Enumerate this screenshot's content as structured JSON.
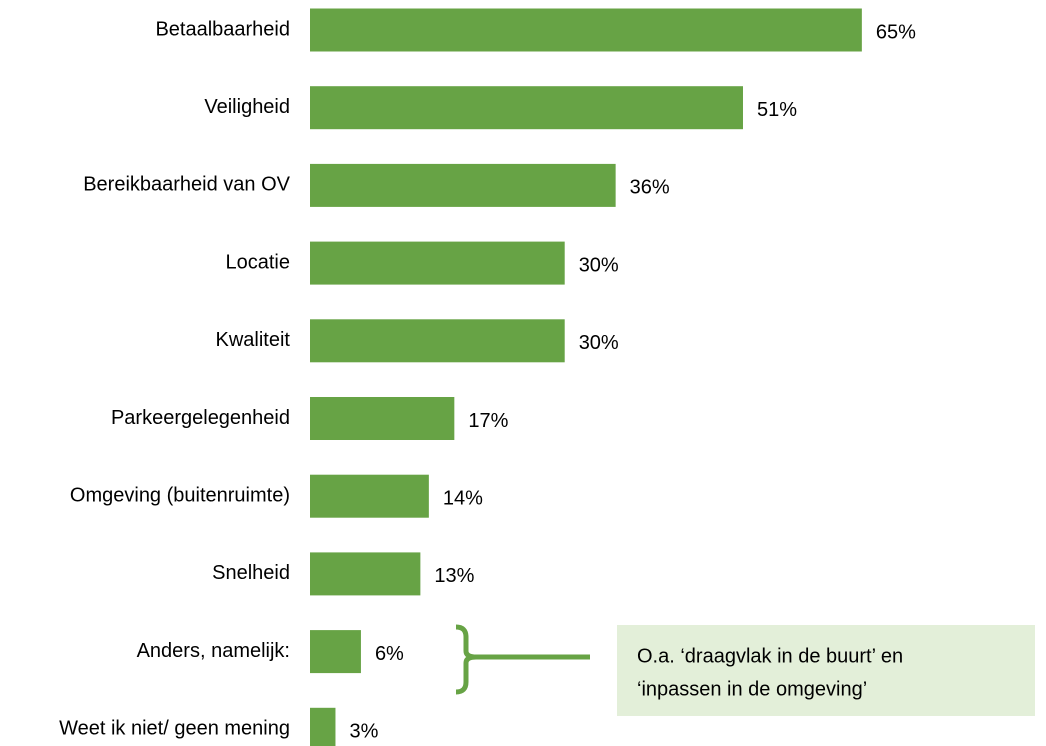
{
  "chart_data": {
    "type": "barh",
    "categories": [
      "Betaalbaarheid",
      "Veiligheid",
      "Bereikbaarheid van OV",
      "Locatie",
      "Kwaliteit",
      "Parkeergelegenheid",
      "Omgeving (buitenruimte)",
      "Snelheid",
      "Anders, namelijk:",
      "Weet ik niet/ geen mening"
    ],
    "values": [
      65,
      51,
      36,
      30,
      30,
      17,
      14,
      13,
      6,
      3
    ],
    "value_labels": [
      "65%",
      "51%",
      "36%",
      "30%",
      "30%",
      "17%",
      "14%",
      "13%",
      "6%",
      "3%"
    ],
    "color": "#67a345",
    "annotation": [
      "O.a. ‘draagvlak in de buurt’ en",
      "‘inpassen in de omgeving’"
    ]
  }
}
